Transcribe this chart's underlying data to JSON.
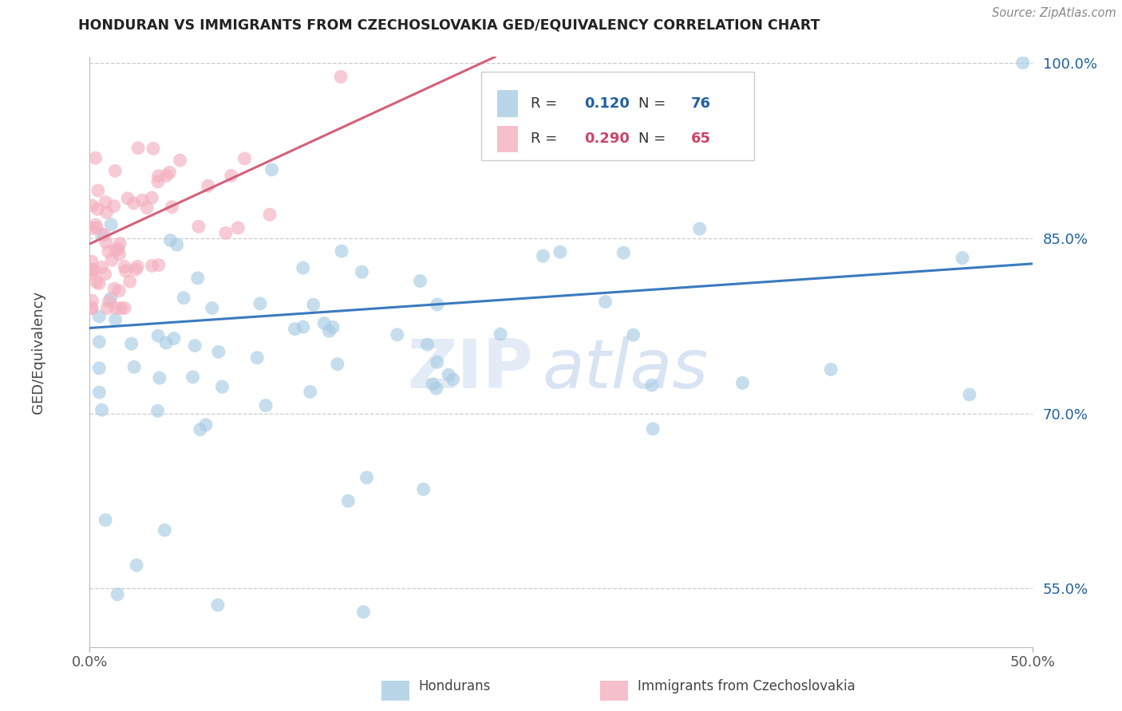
{
  "title": "HONDURAN VS IMMIGRANTS FROM CZECHOSLOVAKIA GED/EQUIVALENCY CORRELATION CHART",
  "source": "Source: ZipAtlas.com",
  "ylabel": "GED/Equivalency",
  "legend_label1": "Hondurans",
  "legend_label2": "Immigrants from Czechoslovakia",
  "R1": 0.12,
  "N1": 76,
  "R2": 0.29,
  "N2": 65,
  "xlim": [
    0.0,
    0.5
  ],
  "ylim": [
    0.5,
    1.005
  ],
  "xtick_labels": [
    "0.0%",
    "50.0%"
  ],
  "ytick_labels": [
    "100.0%",
    "85.0%",
    "70.0%",
    "55.0%"
  ],
  "ytick_values": [
    1.0,
    0.85,
    0.7,
    0.55
  ],
  "color_blue": "#a8cce4",
  "color_pink": "#f4afc0",
  "color_blue_line": "#3a7abf",
  "color_pink_line": "#d4607a",
  "color_R_blue": "#2060a0",
  "color_R_pink": "#cc4466",
  "watermark_zip": "ZIP",
  "watermark_atlas": "atlas",
  "grid_color": "#cccccc"
}
